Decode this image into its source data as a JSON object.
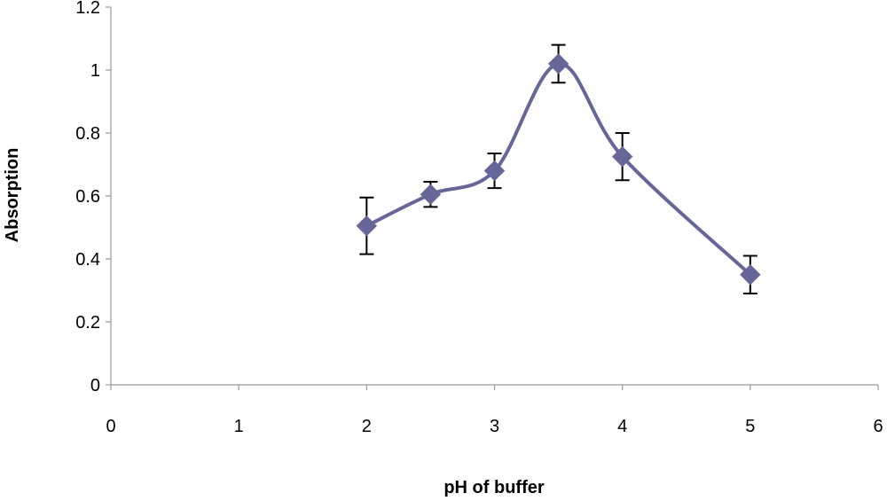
{
  "chart_data": {
    "type": "scatter",
    "title": "",
    "xlabel": "pH of buffer",
    "ylabel": "Absorption",
    "xlim": [
      0,
      6
    ],
    "ylim": [
      0,
      1.2
    ],
    "x_ticks": [
      0,
      1,
      2,
      3,
      4,
      5,
      6
    ],
    "y_ticks": [
      0,
      0.2,
      0.4,
      0.6,
      0.8,
      1,
      1.2
    ],
    "y_tick_labels": [
      "0",
      "0.2",
      "0.4",
      "0.6",
      "0.8",
      "1",
      "1.2"
    ],
    "grid": false,
    "legend": "none",
    "smooth_line": true,
    "series": [
      {
        "color": "#666699",
        "marker": "diamond",
        "x": [
          2,
          2.5,
          3,
          3.5,
          4,
          5
        ],
        "y": [
          0.505,
          0.605,
          0.68,
          1.02,
          0.725,
          0.35
        ],
        "error": [
          0.09,
          0.04,
          0.055,
          0.06,
          0.075,
          0.06
        ]
      }
    ]
  }
}
